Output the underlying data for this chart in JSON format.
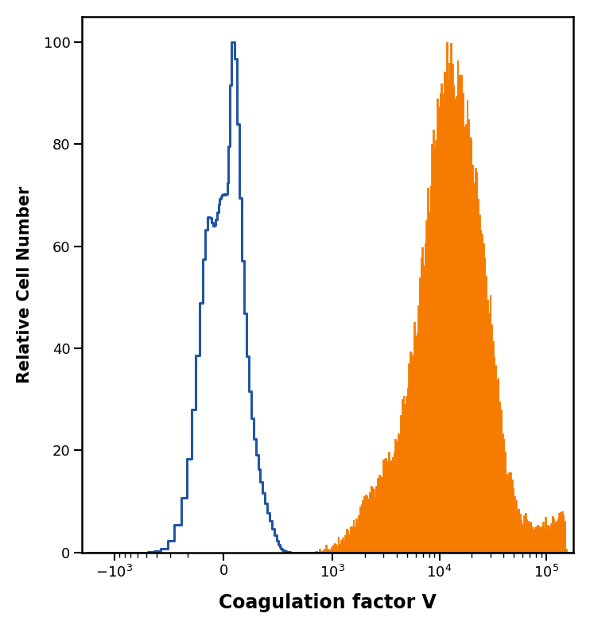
{
  "title": "",
  "xlabel": "Coagulation factor V",
  "ylabel": "Relative Cell Number",
  "xlabel_fontsize": 17,
  "ylabel_fontsize": 15,
  "ylim": [
    0,
    105
  ],
  "yticks": [
    0,
    20,
    40,
    60,
    80,
    100
  ],
  "blue_color": "#2255a4",
  "orange_color": "#f57c00",
  "background_color": "#ffffff",
  "figsize": [
    7.42,
    7.91
  ],
  "dpi": 100,
  "linthresh": 300
}
